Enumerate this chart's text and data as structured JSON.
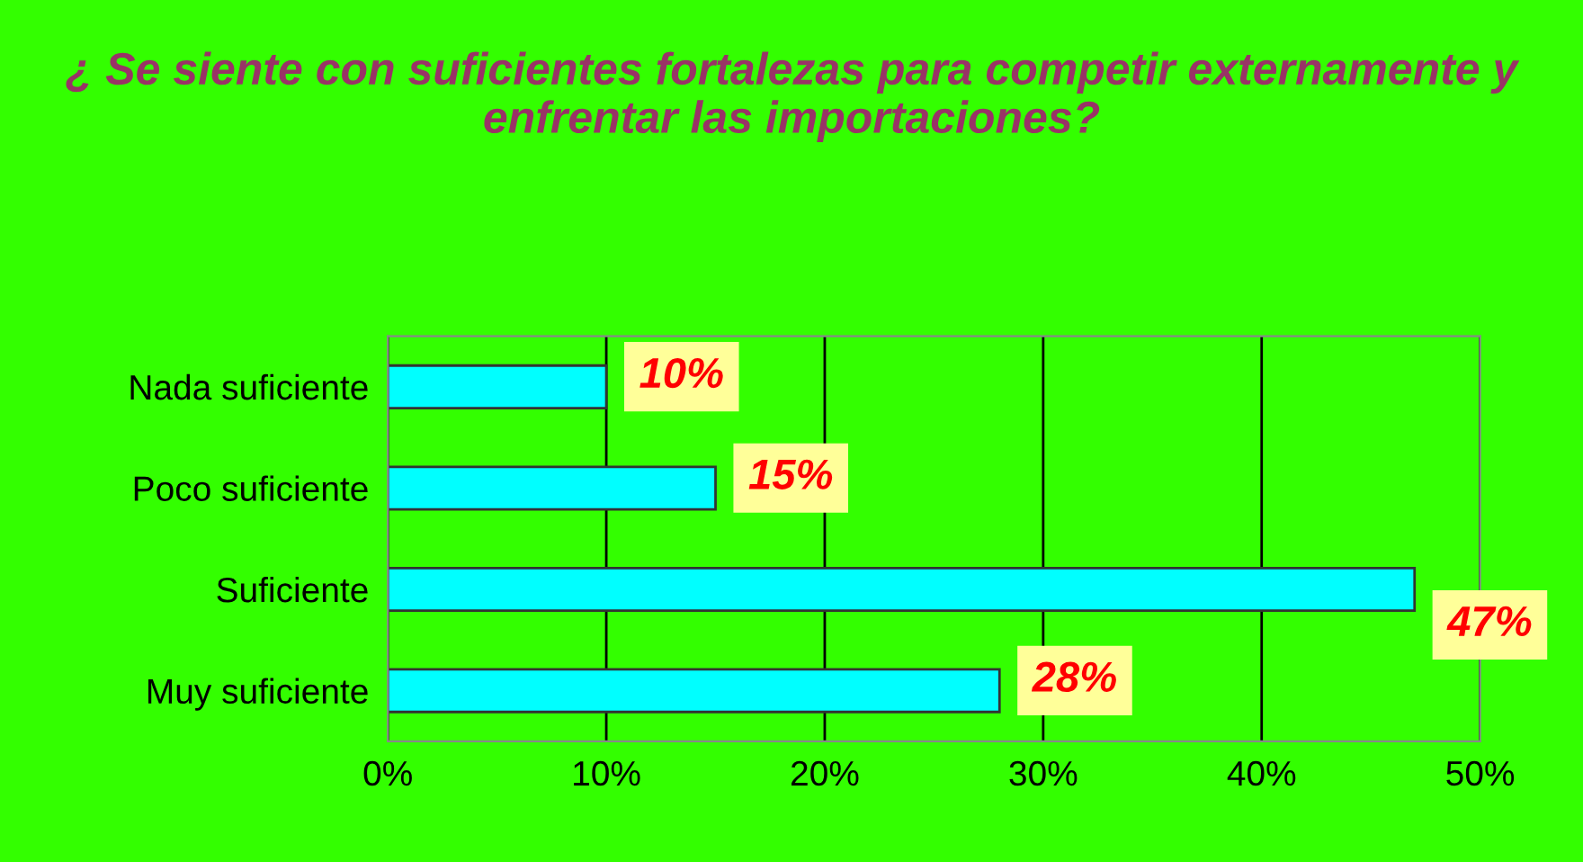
{
  "chart_data": {
    "type": "bar",
    "orientation": "horizontal",
    "title": "¿ Se siente con suficientes fortalezas para competir externamente y enfrentar las importaciones?",
    "categories": [
      "Nada suficiente",
      "Poco suficiente",
      "Suficiente",
      "Muy suficiente"
    ],
    "values": [
      10,
      15,
      47,
      28
    ],
    "color": "#00ffff",
    "value_labels": [
      "10%",
      "15%",
      "47%",
      "28%"
    ],
    "xlim": [
      0,
      50
    ],
    "xticks": [
      {
        "value": 0,
        "label": "0%"
      },
      {
        "value": 10,
        "label": "10%"
      },
      {
        "value": 20,
        "label": "20%"
      },
      {
        "value": 30,
        "label": "30%"
      },
      {
        "value": 40,
        "label": "40%"
      },
      {
        "value": 50,
        "label": "50%"
      }
    ],
    "grid": "x",
    "legend": false
  }
}
